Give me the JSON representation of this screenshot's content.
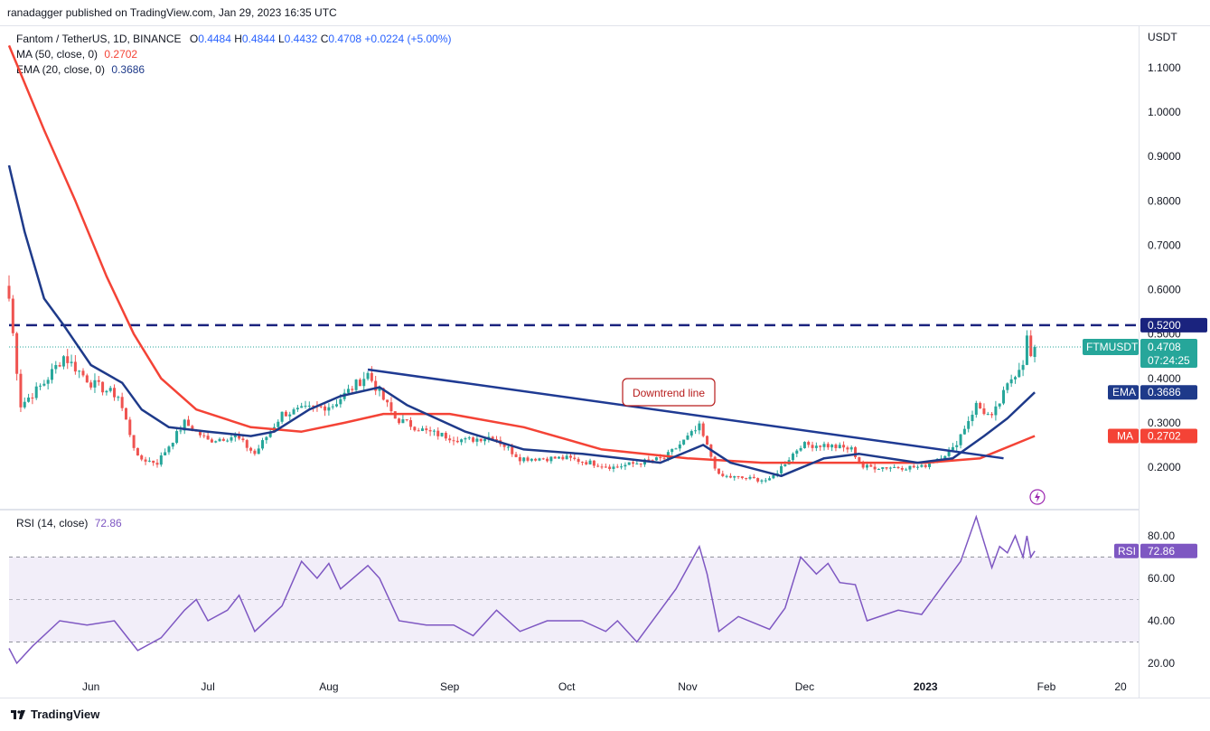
{
  "header": {
    "publisher": "ranadagger published on TradingView.com, Jan 29, 2023 16:35 UTC",
    "symbol_line": "Fantom / TetherUS, 1D, BINANCE",
    "ohlc": {
      "o_label": "O",
      "o": "0.4484",
      "h_label": "H",
      "h": "0.4844",
      "l_label": "L",
      "l": "0.4432",
      "c_label": "C",
      "c": "0.4708",
      "change": "+0.0224 (+5.00%)"
    },
    "ma_label": "MA (50, close, 0)",
    "ma_value": "0.2702",
    "ema_label": "EMA (20, close, 0)",
    "ema_value": "0.3686",
    "rsi_label": "RSI (14, close)",
    "rsi_value": "72.86"
  },
  "brand": "TradingView",
  "colors": {
    "up": "#26a69a",
    "down": "#ef5350",
    "ma": "#f44336",
    "ema": "#1e3a8a",
    "rsi": "#7e57c2",
    "resistance": "#1a237e",
    "trendline": "#1f3a93",
    "annotation_border": "#b71c1c"
  },
  "chart_data": [
    {
      "type": "candlestick",
      "title": "Fantom / TetherUS, 1D, BINANCE",
      "y_unit": "USDT",
      "ylim": [
        0.1,
        1.15
      ],
      "y_ticks": [
        "1.1000",
        "1.0000",
        "0.9000",
        "0.8000",
        "0.7000",
        "0.6000",
        "0.5000",
        "0.4000",
        "0.3000",
        "0.2000"
      ],
      "x_ticks": [
        "Jun",
        "Jul",
        "Aug",
        "Sep",
        "Oct",
        "Nov",
        "Dec",
        "2023",
        "Feb",
        "20"
      ],
      "resistance_level": "0.5200",
      "annotation": "Downtrend line",
      "symbol_tag": "FTMUSDT",
      "last_price": "0.4708",
      "countdown": "07:24:25",
      "ema_tag": "EMA",
      "ema_last": "0.3686",
      "ma_tag": "MA",
      "ma_last": "0.2702",
      "downtrend_line": {
        "start_date": "2022-08-11",
        "start": 0.42,
        "end_date": "2023-01-21",
        "end": 0.22
      },
      "anchors": [
        {
          "date": "2022-05-11",
          "close": 0.58
        },
        {
          "date": "2022-05-14",
          "close": 0.34
        },
        {
          "date": "2022-05-20",
          "close": 0.39
        },
        {
          "date": "2022-05-25",
          "close": 0.45
        },
        {
          "date": "2022-06-01",
          "close": 0.39
        },
        {
          "date": "2022-06-08",
          "close": 0.36
        },
        {
          "date": "2022-06-13",
          "close": 0.22
        },
        {
          "date": "2022-06-18",
          "close": 0.21
        },
        {
          "date": "2022-06-25",
          "close": 0.3
        },
        {
          "date": "2022-07-01",
          "close": 0.26
        },
        {
          "date": "2022-07-08",
          "close": 0.27
        },
        {
          "date": "2022-07-13",
          "close": 0.23
        },
        {
          "date": "2022-07-20",
          "close": 0.32
        },
        {
          "date": "2022-07-26",
          "close": 0.33
        },
        {
          "date": "2022-08-02",
          "close": 0.34
        },
        {
          "date": "2022-08-11",
          "close": 0.41
        },
        {
          "date": "2022-08-18",
          "close": 0.31
        },
        {
          "date": "2022-08-26",
          "close": 0.28
        },
        {
          "date": "2022-09-05",
          "close": 0.26
        },
        {
          "date": "2022-09-12",
          "close": 0.27
        },
        {
          "date": "2022-09-19",
          "close": 0.22
        },
        {
          "date": "2022-10-01",
          "close": 0.22
        },
        {
          "date": "2022-10-13",
          "close": 0.2
        },
        {
          "date": "2022-10-26",
          "close": 0.22
        },
        {
          "date": "2022-11-04",
          "close": 0.29
        },
        {
          "date": "2022-11-09",
          "close": 0.18
        },
        {
          "date": "2022-11-22",
          "close": 0.17
        },
        {
          "date": "2022-11-30",
          "close": 0.25
        },
        {
          "date": "2022-12-06",
          "close": 0.25
        },
        {
          "date": "2022-12-13",
          "close": 0.24
        },
        {
          "date": "2022-12-16",
          "close": 0.2
        },
        {
          "date": "2022-12-31",
          "close": 0.2
        },
        {
          "date": "2023-01-08",
          "close": 0.24
        },
        {
          "date": "2023-01-14",
          "close": 0.34
        },
        {
          "date": "2023-01-18",
          "close": 0.31
        },
        {
          "date": "2023-01-23",
          "close": 0.4
        },
        {
          "date": "2023-01-26",
          "close": 0.44
        },
        {
          "date": "2023-01-27",
          "close": 0.49
        },
        {
          "date": "2023-01-28",
          "close": 0.448
        },
        {
          "date": "2023-01-29",
          "close": 0.4708
        }
      ],
      "ema20": [
        {
          "date": "2022-05-11",
          "value": 0.88
        },
        {
          "date": "2022-05-15",
          "value": 0.73
        },
        {
          "date": "2022-05-20",
          "value": 0.58
        },
        {
          "date": "2022-05-25",
          "value": 0.52
        },
        {
          "date": "2022-06-01",
          "value": 0.43
        },
        {
          "date": "2022-06-09",
          "value": 0.39
        },
        {
          "date": "2022-06-14",
          "value": 0.33
        },
        {
          "date": "2022-06-21",
          "value": 0.29
        },
        {
          "date": "2022-07-01",
          "value": 0.28
        },
        {
          "date": "2022-07-12",
          "value": 0.27
        },
        {
          "date": "2022-07-18",
          "value": 0.28
        },
        {
          "date": "2022-07-27",
          "value": 0.33
        },
        {
          "date": "2022-08-04",
          "value": 0.36
        },
        {
          "date": "2022-08-14",
          "value": 0.38
        },
        {
          "date": "2022-08-21",
          "value": 0.34
        },
        {
          "date": "2022-09-05",
          "value": 0.28
        },
        {
          "date": "2022-09-20",
          "value": 0.24
        },
        {
          "date": "2022-10-05",
          "value": 0.23
        },
        {
          "date": "2022-10-25",
          "value": 0.21
        },
        {
          "date": "2022-11-05",
          "value": 0.25
        },
        {
          "date": "2022-11-12",
          "value": 0.21
        },
        {
          "date": "2022-11-25",
          "value": 0.18
        },
        {
          "date": "2022-12-06",
          "value": 0.22
        },
        {
          "date": "2022-12-15",
          "value": 0.23
        },
        {
          "date": "2022-12-30",
          "value": 0.21
        },
        {
          "date": "2023-01-08",
          "value": 0.22
        },
        {
          "date": "2023-01-16",
          "value": 0.27
        },
        {
          "date": "2023-01-22",
          "value": 0.31
        },
        {
          "date": "2023-01-29",
          "value": 0.3686
        }
      ],
      "ma50": [
        {
          "date": "2022-05-11",
          "value": 1.15
        },
        {
          "date": "2022-05-20",
          "value": 0.96
        },
        {
          "date": "2022-05-28",
          "value": 0.8
        },
        {
          "date": "2022-06-05",
          "value": 0.63
        },
        {
          "date": "2022-06-12",
          "value": 0.5
        },
        {
          "date": "2022-06-19",
          "value": 0.4
        },
        {
          "date": "2022-06-28",
          "value": 0.33
        },
        {
          "date": "2022-07-12",
          "value": 0.29
        },
        {
          "date": "2022-07-25",
          "value": 0.28
        },
        {
          "date": "2022-08-05",
          "value": 0.3
        },
        {
          "date": "2022-08-15",
          "value": 0.32
        },
        {
          "date": "2022-09-01",
          "value": 0.32
        },
        {
          "date": "2022-09-20",
          "value": 0.29
        },
        {
          "date": "2022-10-10",
          "value": 0.24
        },
        {
          "date": "2022-11-01",
          "value": 0.22
        },
        {
          "date": "2022-11-20",
          "value": 0.21
        },
        {
          "date": "2022-12-10",
          "value": 0.21
        },
        {
          "date": "2023-01-01",
          "value": 0.21
        },
        {
          "date": "2023-01-15",
          "value": 0.22
        },
        {
          "date": "2023-01-29",
          "value": 0.2702
        }
      ]
    },
    {
      "type": "line",
      "title": "RSI (14, close)",
      "ylim": [
        15,
        92
      ],
      "y_ticks": [
        "80.00",
        "60.00",
        "40.00",
        "20.00"
      ],
      "bands": [
        70,
        50,
        30
      ],
      "last_tag": "RSI",
      "last_value": "72.86",
      "series": [
        {
          "date": "2022-05-11",
          "value": 27
        },
        {
          "date": "2022-05-13",
          "value": 20
        },
        {
          "date": "2022-05-17",
          "value": 28
        },
        {
          "date": "2022-05-24",
          "value": 40
        },
        {
          "date": "2022-05-31",
          "value": 38
        },
        {
          "date": "2022-06-07",
          "value": 40
        },
        {
          "date": "2022-06-13",
          "value": 26
        },
        {
          "date": "2022-06-19",
          "value": 32
        },
        {
          "date": "2022-06-25",
          "value": 45
        },
        {
          "date": "2022-06-28",
          "value": 50
        },
        {
          "date": "2022-07-01",
          "value": 40
        },
        {
          "date": "2022-07-06",
          "value": 45
        },
        {
          "date": "2022-07-09",
          "value": 52
        },
        {
          "date": "2022-07-13",
          "value": 35
        },
        {
          "date": "2022-07-20",
          "value": 47
        },
        {
          "date": "2022-07-25",
          "value": 68
        },
        {
          "date": "2022-07-29",
          "value": 60
        },
        {
          "date": "2022-08-01",
          "value": 67
        },
        {
          "date": "2022-08-04",
          "value": 55
        },
        {
          "date": "2022-08-11",
          "value": 66
        },
        {
          "date": "2022-08-14",
          "value": 60
        },
        {
          "date": "2022-08-19",
          "value": 40
        },
        {
          "date": "2022-08-26",
          "value": 38
        },
        {
          "date": "2022-09-02",
          "value": 38
        },
        {
          "date": "2022-09-07",
          "value": 33
        },
        {
          "date": "2022-09-13",
          "value": 45
        },
        {
          "date": "2022-09-19",
          "value": 35
        },
        {
          "date": "2022-09-26",
          "value": 40
        },
        {
          "date": "2022-10-05",
          "value": 40
        },
        {
          "date": "2022-10-11",
          "value": 35
        },
        {
          "date": "2022-10-14",
          "value": 40
        },
        {
          "date": "2022-10-19",
          "value": 30
        },
        {
          "date": "2022-10-25",
          "value": 45
        },
        {
          "date": "2022-10-29",
          "value": 55
        },
        {
          "date": "2022-11-04",
          "value": 75
        },
        {
          "date": "2022-11-06",
          "value": 62
        },
        {
          "date": "2022-11-09",
          "value": 35
        },
        {
          "date": "2022-11-14",
          "value": 42
        },
        {
          "date": "2022-11-22",
          "value": 36
        },
        {
          "date": "2022-11-26",
          "value": 46
        },
        {
          "date": "2022-11-30",
          "value": 70
        },
        {
          "date": "2022-12-04",
          "value": 62
        },
        {
          "date": "2022-12-07",
          "value": 67
        },
        {
          "date": "2022-12-10",
          "value": 58
        },
        {
          "date": "2022-12-14",
          "value": 57
        },
        {
          "date": "2022-12-17",
          "value": 40
        },
        {
          "date": "2022-12-25",
          "value": 45
        },
        {
          "date": "2022-12-31",
          "value": 43
        },
        {
          "date": "2023-01-06",
          "value": 58
        },
        {
          "date": "2023-01-10",
          "value": 68
        },
        {
          "date": "2023-01-14",
          "value": 89
        },
        {
          "date": "2023-01-18",
          "value": 65
        },
        {
          "date": "2023-01-20",
          "value": 75
        },
        {
          "date": "2023-01-22",
          "value": 72
        },
        {
          "date": "2023-01-24",
          "value": 80
        },
        {
          "date": "2023-01-26",
          "value": 70
        },
        {
          "date": "2023-01-27",
          "value": 80
        },
        {
          "date": "2023-01-28",
          "value": 70
        },
        {
          "date": "2023-01-29",
          "value": 72.86
        }
      ]
    }
  ]
}
